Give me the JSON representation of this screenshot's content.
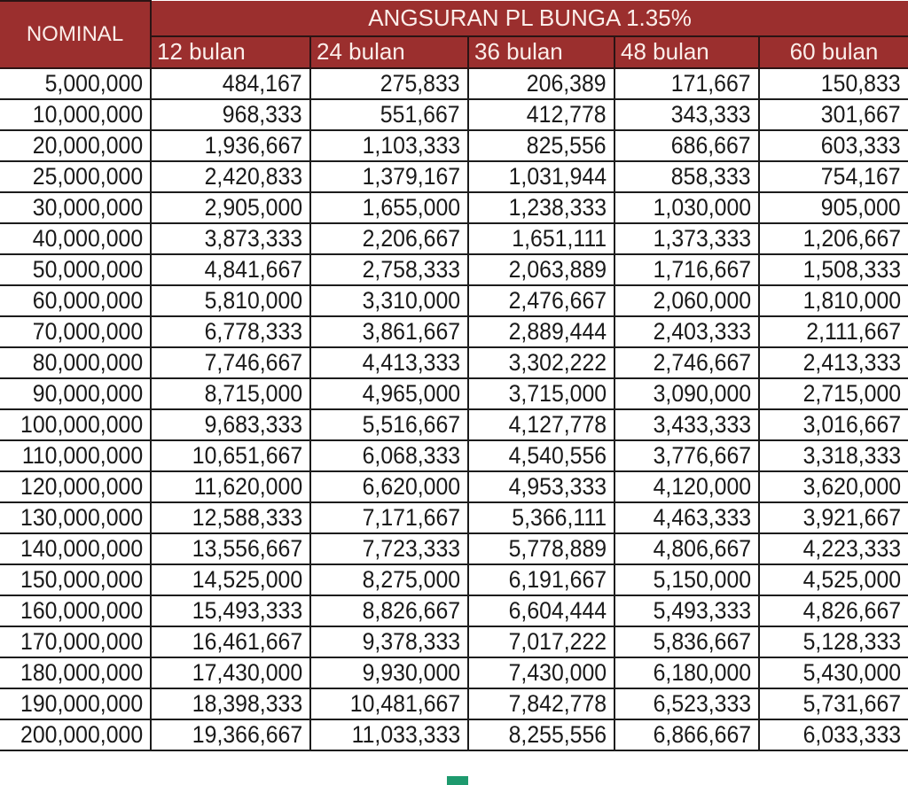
{
  "table": {
    "title": "ANGSURAN PL BUNGA 1.35%",
    "nominal_header": "NOMINAL",
    "terms": [
      "12 bulan",
      "24 bulan",
      "36 bulan",
      "48 bulan",
      "60 bulan"
    ],
    "header_color": "#9b2f2e",
    "rows": [
      [
        "5,000,000",
        "484,167",
        "275,833",
        "206,389",
        "171,667",
        "150,833"
      ],
      [
        "10,000,000",
        "968,333",
        "551,667",
        "412,778",
        "343,333",
        "301,667"
      ],
      [
        "20,000,000",
        "1,936,667",
        "1,103,333",
        "825,556",
        "686,667",
        "603,333"
      ],
      [
        "25,000,000",
        "2,420,833",
        "1,379,167",
        "1,031,944",
        "858,333",
        "754,167"
      ],
      [
        "30,000,000",
        "2,905,000",
        "1,655,000",
        "1,238,333",
        "1,030,000",
        "905,000"
      ],
      [
        "40,000,000",
        "3,873,333",
        "2,206,667",
        "1,651,111",
        "1,373,333",
        "1,206,667"
      ],
      [
        "50,000,000",
        "4,841,667",
        "2,758,333",
        "2,063,889",
        "1,716,667",
        "1,508,333"
      ],
      [
        "60,000,000",
        "5,810,000",
        "3,310,000",
        "2,476,667",
        "2,060,000",
        "1,810,000"
      ],
      [
        "70,000,000",
        "6,778,333",
        "3,861,667",
        "2,889,444",
        "2,403,333",
        "2,111,667"
      ],
      [
        "80,000,000",
        "7,746,667",
        "4,413,333",
        "3,302,222",
        "2,746,667",
        "2,413,333"
      ],
      [
        "90,000,000",
        "8,715,000",
        "4,965,000",
        "3,715,000",
        "3,090,000",
        "2,715,000"
      ],
      [
        "100,000,000",
        "9,683,333",
        "5,516,667",
        "4,127,778",
        "3,433,333",
        "3,016,667"
      ],
      [
        "110,000,000",
        "10,651,667",
        "6,068,333",
        "4,540,556",
        "3,776,667",
        "3,318,333"
      ],
      [
        "120,000,000",
        "11,620,000",
        "6,620,000",
        "4,953,333",
        "4,120,000",
        "3,620,000"
      ],
      [
        "130,000,000",
        "12,588,333",
        "7,171,667",
        "5,366,111",
        "4,463,333",
        "3,921,667"
      ],
      [
        "140,000,000",
        "13,556,667",
        "7,723,333",
        "5,778,889",
        "4,806,667",
        "4,223,333"
      ],
      [
        "150,000,000",
        "14,525,000",
        "8,275,000",
        "6,191,667",
        "5,150,000",
        "4,525,000"
      ],
      [
        "160,000,000",
        "15,493,333",
        "8,826,667",
        "6,604,444",
        "5,493,333",
        "4,826,667"
      ],
      [
        "170,000,000",
        "16,461,667",
        "9,378,333",
        "7,017,222",
        "5,836,667",
        "5,128,333"
      ],
      [
        "180,000,000",
        "17,430,000",
        "9,930,000",
        "7,430,000",
        "6,180,000",
        "5,430,000"
      ],
      [
        "190,000,000",
        "18,398,333",
        "10,481,667",
        "7,842,778",
        "6,523,333",
        "5,731,667"
      ],
      [
        "200,000,000",
        "19,366,667",
        "11,033,333",
        "8,255,556",
        "6,866,667",
        "6,033,333"
      ]
    ]
  }
}
